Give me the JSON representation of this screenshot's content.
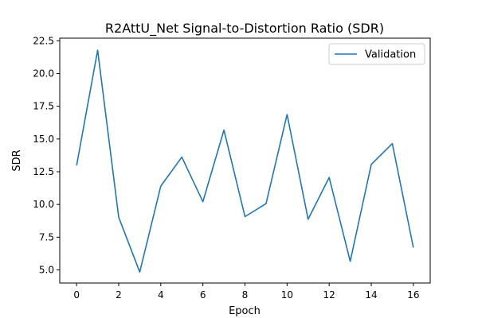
{
  "chart_data": {
    "type": "line",
    "title": "R2AttU_Net Signal-to-Distortion Ratio (SDR)",
    "xlabel": "Epoch",
    "ylabel": "SDR",
    "x": [
      0,
      1,
      2,
      3,
      4,
      5,
      6,
      7,
      8,
      9,
      10,
      11,
      12,
      13,
      14,
      15,
      16
    ],
    "series": [
      {
        "name": "Validation",
        "color": "#1f77b4",
        "values": [
          12.97,
          21.78,
          9.03,
          4.84,
          11.4,
          13.62,
          10.21,
          15.68,
          9.07,
          10.06,
          16.87,
          8.87,
          12.06,
          5.66,
          13.06,
          14.65,
          6.71
        ]
      }
    ],
    "xlim": [
      -0.8,
      16.8
    ],
    "ylim": [
      4.0,
      22.7
    ],
    "xticks": [
      0,
      2,
      4,
      6,
      8,
      10,
      12,
      14,
      16
    ],
    "xtick_labels": [
      "0",
      "2",
      "4",
      "6",
      "8",
      "10",
      "12",
      "14",
      "16"
    ],
    "yticks": [
      5.0,
      7.5,
      10.0,
      12.5,
      15.0,
      17.5,
      20.0,
      22.5
    ],
    "ytick_labels": [
      "5.0",
      "7.5",
      "10.0",
      "12.5",
      "15.0",
      "17.5",
      "20.0",
      "22.5"
    ],
    "grid": false,
    "legend_position": "top-right"
  }
}
